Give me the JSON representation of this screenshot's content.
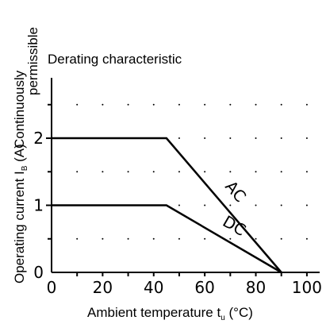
{
  "chart_data": {
    "type": "line",
    "title": "Derating characteristic",
    "xlabel": {
      "main": "Ambient temperature t",
      "sub": "u",
      "unit": " (°C)"
    },
    "ylabel": {
      "main": "Operating current I",
      "sub": "B",
      "unit": " (A)",
      "line2a": "Continuously",
      "line2b": "permissible"
    },
    "xlim": [
      0,
      105
    ],
    "ylim": [
      0,
      2.9
    ],
    "x_ticks": [
      0,
      20,
      40,
      60,
      80,
      100
    ],
    "y_ticks": [
      0,
      1,
      2
    ],
    "x_tick_labels": [
      "0",
      "20",
      "40",
      "60",
      "80",
      "100"
    ],
    "y_tick_labels": [
      "0",
      "1",
      "2"
    ],
    "grid": "dotted",
    "series": [
      {
        "name": "AC",
        "points": [
          [
            0,
            2
          ],
          [
            45,
            2
          ],
          [
            90,
            0
          ]
        ]
      },
      {
        "name": "DC",
        "points": [
          [
            0,
            1
          ],
          [
            45,
            1
          ],
          [
            90,
            0
          ]
        ]
      }
    ]
  }
}
